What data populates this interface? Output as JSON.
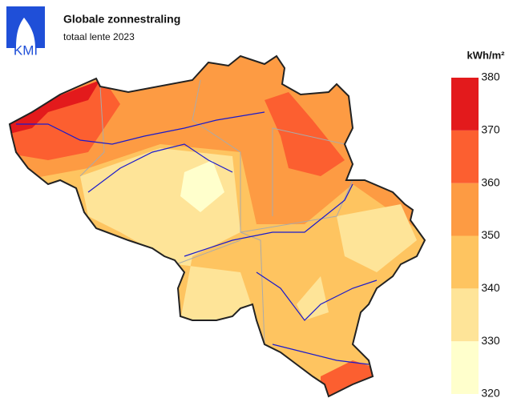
{
  "header": {
    "logo": "KMI",
    "title": "Globale zonnestraling",
    "subtitle": "totaal lente 2023"
  },
  "legend": {
    "unit": "kWh/m²",
    "ticks": [
      320,
      330,
      340,
      350,
      360,
      370,
      380
    ],
    "colors": [
      "#ffffcc",
      "#fee498",
      "#fec460",
      "#fd9b43",
      "#fc5f30",
      "#e31a1c"
    ]
  }
}
